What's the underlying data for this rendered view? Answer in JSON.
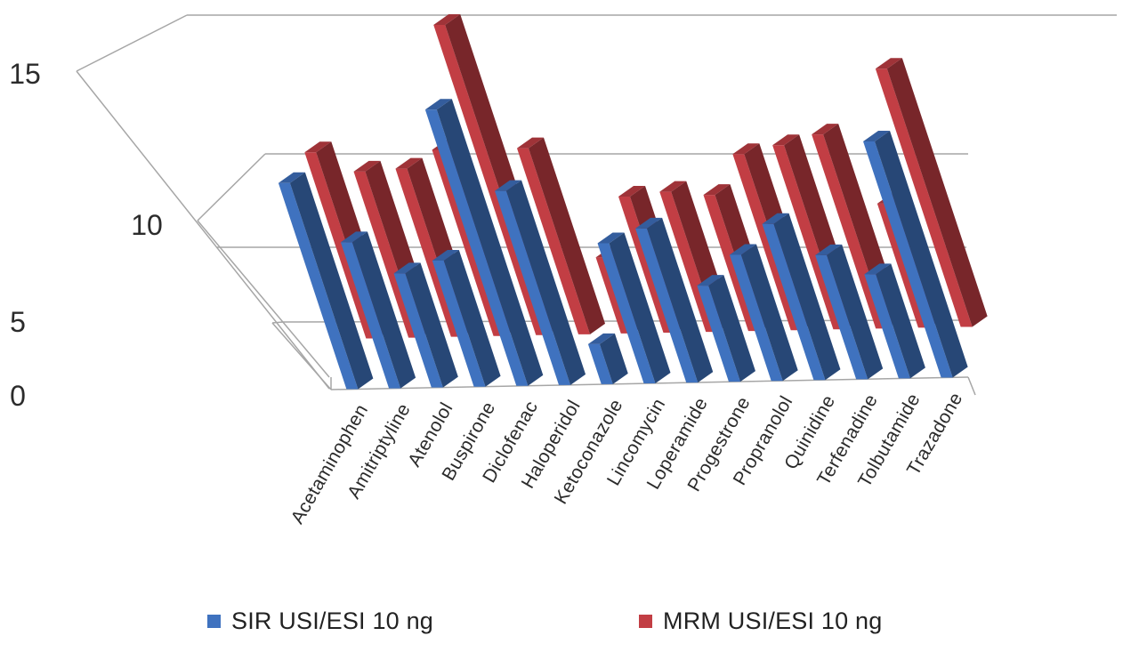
{
  "chart_data": {
    "type": "bar",
    "categories": [
      "Acetaminophen",
      "Amitriptyline",
      "Atenolol",
      "Buspirone",
      "Diclofenac",
      "Haloperidol",
      "Ketoconazole",
      "Lincomycin",
      "Loperamide",
      "Progestrone",
      "Propranolol",
      "Quinidine",
      "Terfenadine",
      "Tolbutamide",
      "Trazadone"
    ],
    "series": [
      {
        "name": "SIR USI/ESI 10 ng",
        "color": "#3f72bf",
        "values": [
          10.3,
          7.3,
          5.7,
          6.3,
          13.8,
          9.7,
          2.0,
          7.0,
          7.7,
          4.8,
          6.3,
          7.8,
          6.2,
          5.2,
          11.8
        ]
      },
      {
        "name": "MRM USI/ESI 10 ng",
        "color": "#c23e44",
        "values": [
          9.3,
          8.3,
          8.4,
          9.3,
          15.5,
          9.3,
          3.8,
          6.8,
          7.0,
          6.8,
          8.8,
          9.2,
          9.7,
          6.2,
          12.9
        ]
      }
    ],
    "yticks": [
      "0",
      "5",
      "10",
      "15"
    ],
    "ylim": [
      0,
      15
    ],
    "grid": true,
    "legend_position": "bottom",
    "chart_style": "3d-column"
  }
}
